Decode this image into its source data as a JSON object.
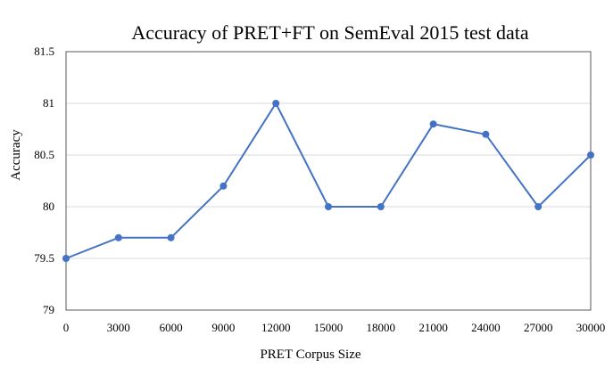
{
  "chart_data": {
    "type": "line",
    "title": "Accuracy of PRET+FT on SemEval 2015 test data",
    "xlabel": "PRET Corpus Size",
    "ylabel": "Accuracy",
    "x": [
      0,
      3000,
      6000,
      9000,
      12000,
      15000,
      18000,
      21000,
      24000,
      27000,
      30000
    ],
    "x_tick_labels": [
      "0",
      "3000",
      "6000",
      "9000",
      "12000",
      "15000",
      "18000",
      "21000",
      "24000",
      "27000",
      "30000"
    ],
    "y_tick_labels": [
      "79",
      "79.5",
      "80",
      "80.5",
      "81",
      "81.5"
    ],
    "series": [
      {
        "values": [
          79.5,
          79.7,
          79.7,
          80.2,
          81.0,
          80.0,
          80.0,
          80.8,
          80.7,
          80.0,
          80.5
        ]
      }
    ],
    "xlim": [
      0,
      30000
    ],
    "ylim": [
      79,
      81.5
    ],
    "yticks": [
      79,
      79.5,
      80,
      80.5,
      81,
      81.5
    ],
    "grid": true,
    "legend": "none",
    "colors": {
      "line": "#4472C4",
      "grid": "#D9D9D9",
      "frame": "#595959"
    }
  }
}
